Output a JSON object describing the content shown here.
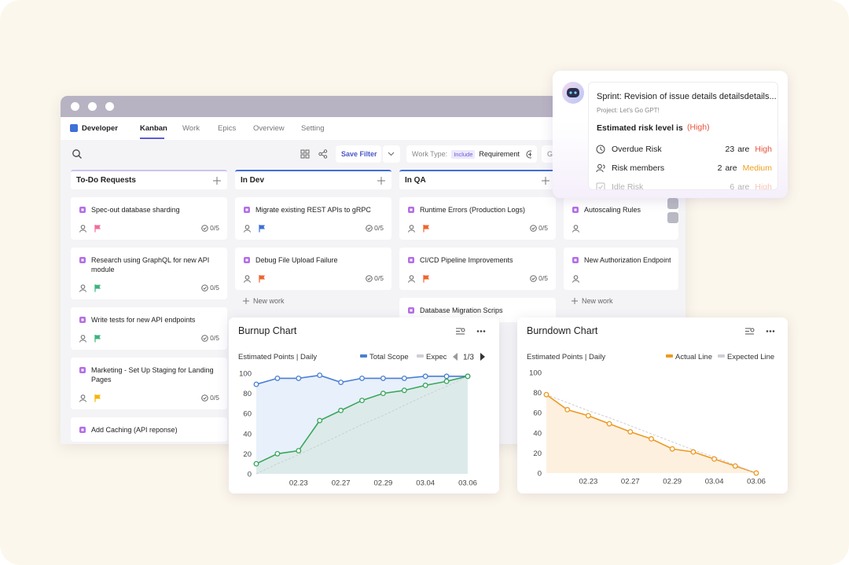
{
  "app": {
    "brand": "Developer",
    "tabs": [
      "Kanban",
      "Work",
      "Epics",
      "Overview",
      "Setting"
    ]
  },
  "toolbar": {
    "save_filter": "Save Filter",
    "work_type_label": "Work Type:",
    "include": "Include",
    "work_type_value": "Requirement",
    "more": "Gr"
  },
  "columns": [
    {
      "title": "To-Do Requests",
      "accent": "#cbc4ee",
      "cards": [
        {
          "title": "Spec-out database sharding",
          "flag": "#f26c9b",
          "progress": "0/5"
        },
        {
          "title": "Research using GraphQL for new API module",
          "flag": "#3cb37d",
          "progress": "0/5"
        },
        {
          "title": "Write tests for new API endpoints",
          "flag": "#3cb37d",
          "progress": "0/5"
        },
        {
          "title": "Marketing - Set Up Staging for Landing Pages",
          "flag": "#f5b400",
          "progress": "0/5"
        },
        {
          "title": "Add Caching (API reponse)"
        }
      ]
    },
    {
      "title": "In Dev",
      "accent": "#3f6fd9",
      "cards": [
        {
          "title": "Migrate existing REST APIs to gRPC",
          "flag": "#3f6fd9",
          "progress": "0/5"
        },
        {
          "title": "Debug File Upload Failure",
          "flag": "#f0642d",
          "progress": "0/5"
        }
      ],
      "new_work": "New work"
    },
    {
      "title": "In QA",
      "accent": "#3f6fd9",
      "cards": [
        {
          "title": "Runtime Errors (Production Logs)",
          "flag": "#f0642d",
          "progress": "0/5"
        },
        {
          "title": "CI/CD Pipeline Improvements",
          "flag": "#f0642d",
          "progress": "0/5"
        },
        {
          "title": "Database Migration Scrips"
        }
      ]
    },
    {
      "accent": "#d6d6de",
      "cards": [
        {
          "title": "Autoscaling Rules",
          "person": true
        },
        {
          "title": "New Authorization Endpoint fo",
          "person": true
        }
      ],
      "new_work": "New work"
    }
  ],
  "assistant": {
    "sprint": "Sprint: Revision of issue details detailsdetails...",
    "project": "Project: Let's Go GPT!",
    "risk_label": "Estimated risk level is",
    "risk_level": "(High)",
    "items": [
      {
        "label": "Overdue Risk",
        "count": 23,
        "unit": "are",
        "level": "High",
        "color": "#e8553c"
      },
      {
        "label": "Risk members",
        "count": 2,
        "unit": "are",
        "level": "Medium",
        "color": "#f0a020"
      },
      {
        "label": "Idle Risk",
        "count": 6,
        "unit": "are",
        "level": "High",
        "color": "#e8553c"
      }
    ]
  },
  "chart_data": [
    {
      "type": "line",
      "title": "Burnup Chart",
      "subtitle": "Estimated Points | Daily",
      "pager": "1/3",
      "categories": [
        null,
        null,
        "02.23",
        null,
        "02.27",
        null,
        "02.29",
        null,
        "03.04",
        null,
        "03.06"
      ],
      "ylim": [
        0,
        100
      ],
      "yticks": [
        0,
        20,
        40,
        60,
        80,
        100
      ],
      "series": [
        {
          "name": "Total Scope",
          "color": "#4a7fd4",
          "area": "#e8f0fb",
          "values": [
            89,
            95,
            95,
            98,
            91,
            95,
            95,
            95,
            97,
            97,
            97
          ]
        },
        {
          "color": "#3aa65c",
          "area": "#dcebea",
          "values": [
            10,
            20,
            23,
            53,
            63,
            73,
            80,
            83,
            88,
            92,
            97
          ]
        },
        {
          "name": "Expec",
          "color": "#cdced6",
          "dashed": true,
          "values": [
            0,
            10,
            19,
            29,
            39,
            49,
            58,
            68,
            78,
            87,
            97
          ]
        }
      ]
    },
    {
      "type": "line",
      "title": "Burndown Chart",
      "subtitle": "Estimated Points | Daily",
      "categories": [
        null,
        null,
        "02.23",
        null,
        "02.27",
        null,
        "02.29",
        null,
        "03.04",
        null,
        "03.06"
      ],
      "ylim": [
        0,
        100
      ],
      "yticks": [
        0,
        20,
        40,
        60,
        80,
        100
      ],
      "series": [
        {
          "name": "Actual Line",
          "color": "#ec9a22",
          "area": "#fdf0df",
          "values": [
            78,
            63,
            57,
            49,
            41,
            34,
            24,
            21,
            14,
            7,
            0
          ]
        },
        {
          "name": "Expected Line",
          "color": "#cdced6",
          "dashed": true,
          "values": [
            78,
            70,
            62,
            55,
            47,
            39,
            31,
            23,
            16,
            8,
            0
          ]
        }
      ]
    }
  ]
}
